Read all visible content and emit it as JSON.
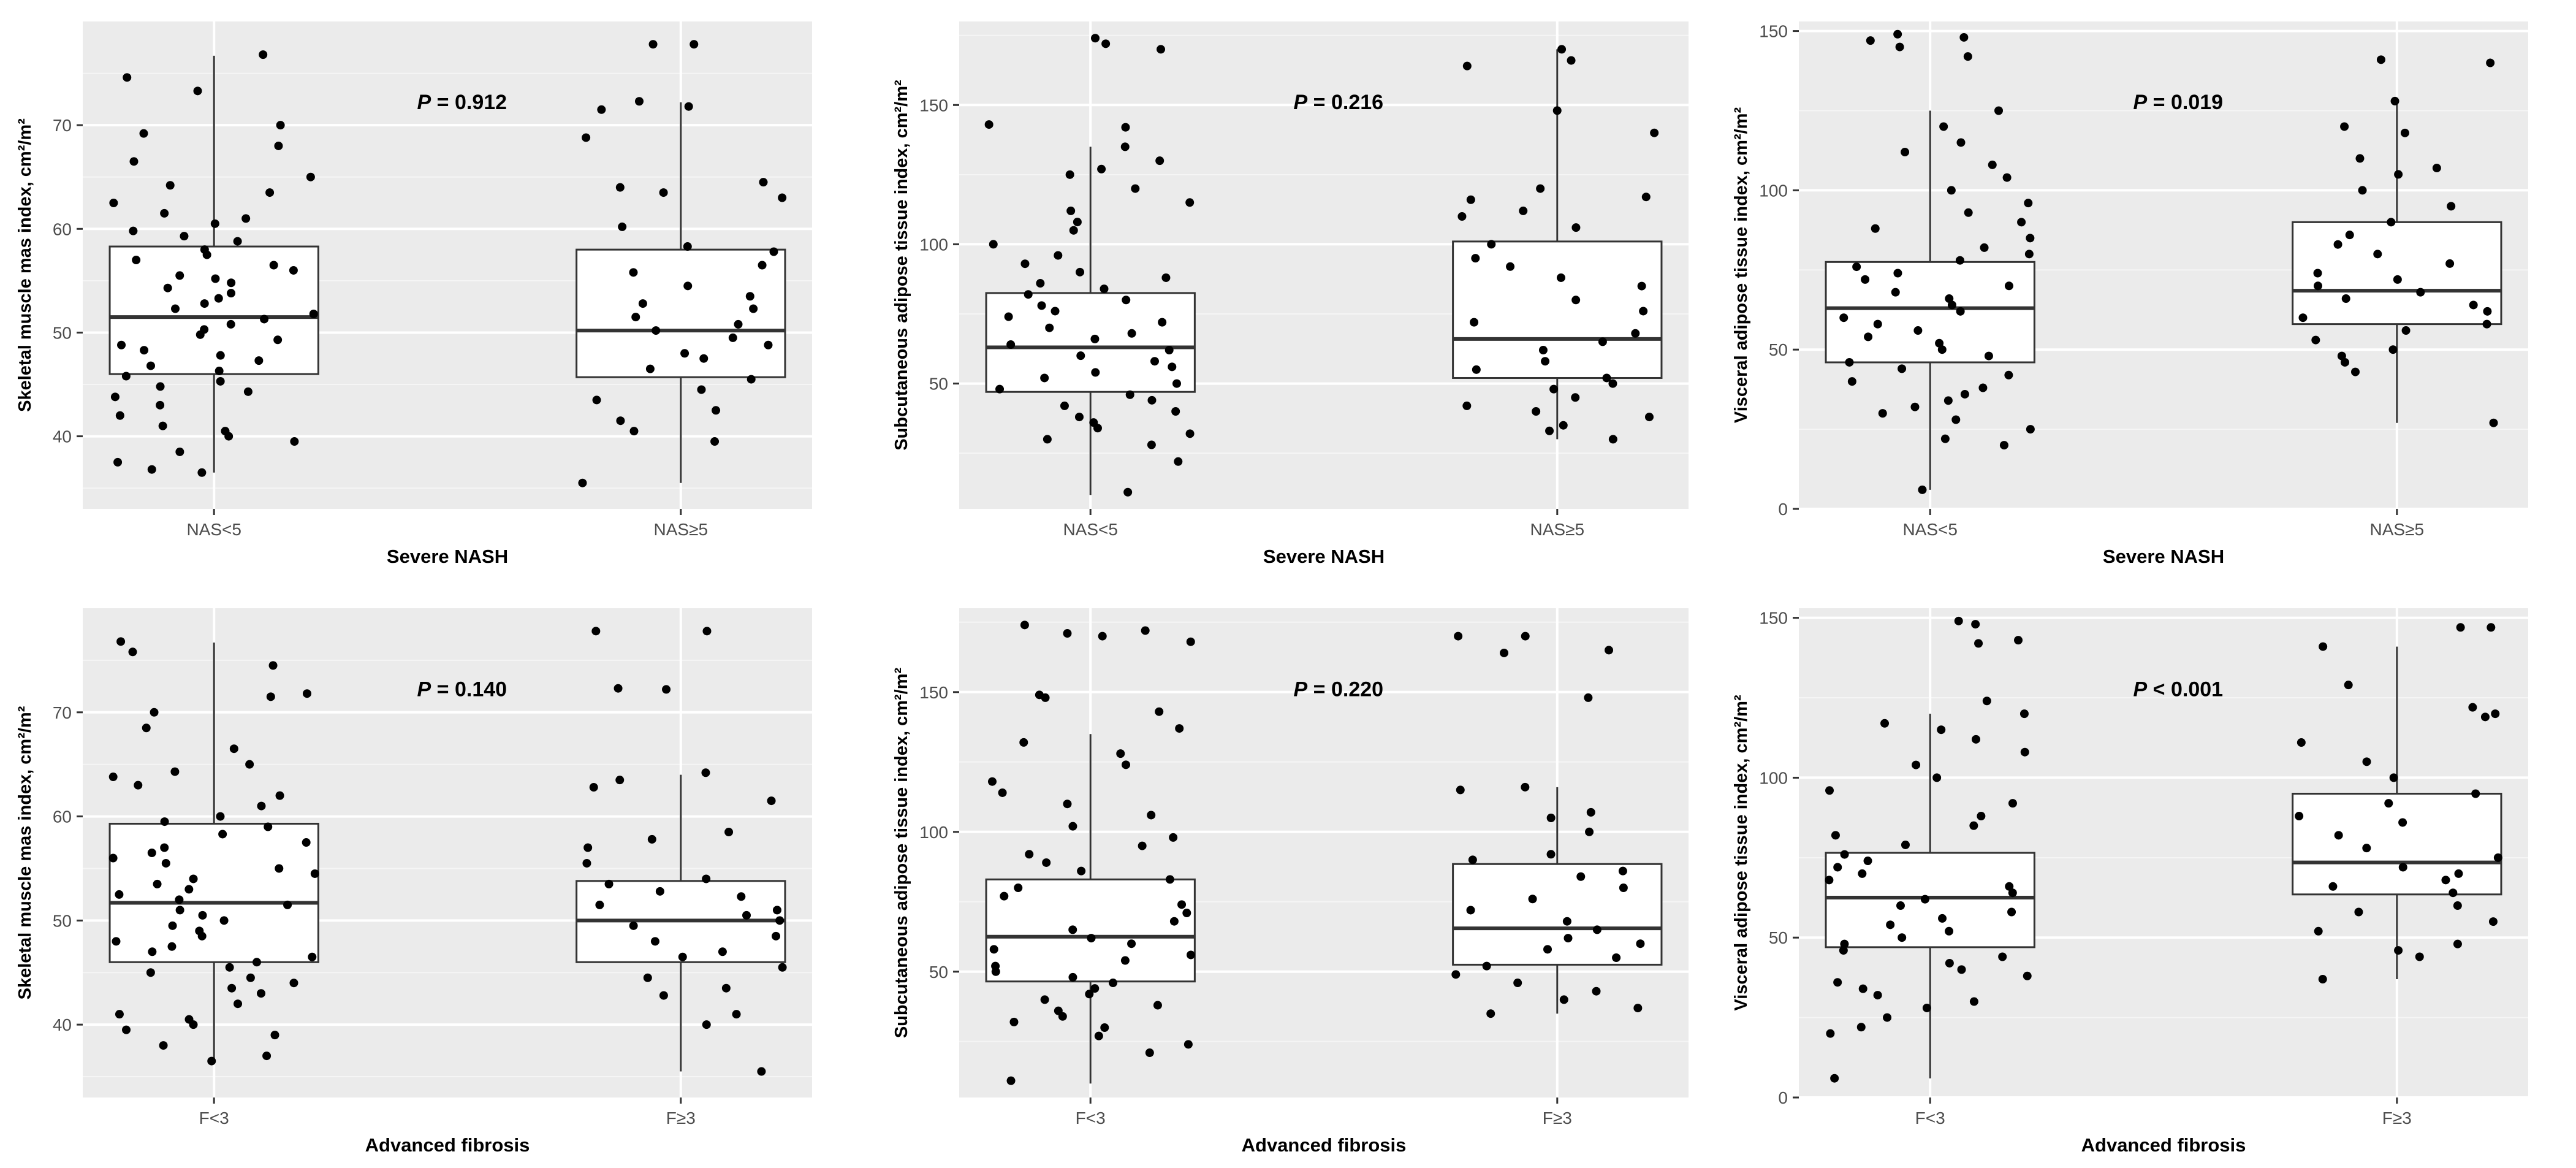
{
  "figure": {
    "panels_count": 6
  },
  "chart_data": [
    {
      "type": "box",
      "title": "",
      "xlabel": "Severe NASH",
      "ylabel": "Skeletal muscle mas index, cm²/m²",
      "categories": [
        "NAS<5",
        "NAS≥5"
      ],
      "ylim": [
        33,
        80
      ],
      "yticks": [
        40,
        50,
        60,
        70
      ],
      "annotation": {
        "label": "P",
        "text": " = 0.912"
      },
      "boxes": [
        {
          "category": "NAS<5",
          "whisker_low": 36.5,
          "q1": 46.0,
          "median": 51.5,
          "q3": 58.3,
          "whisker_high": 76.7
        },
        {
          "category": "NAS≥5",
          "whisker_low": 35.5,
          "q1": 45.7,
          "median": 50.2,
          "q3": 58.0,
          "whisker_high": 72.2
        }
      ],
      "points": [
        [
          76.8,
          74.6,
          73.3,
          70.0,
          69.2,
          68.0,
          66.5,
          65.0,
          64.2,
          63.5,
          62.5,
          61.5,
          61.0,
          60.5,
          59.8,
          59.3,
          58.8,
          58.0,
          57.5,
          57.0,
          56.5,
          56.0,
          55.5,
          55.2,
          54.8,
          54.3,
          53.8,
          53.3,
          52.8,
          52.3,
          51.8,
          51.3,
          50.8,
          50.3,
          49.8,
          49.3,
          48.8,
          48.3,
          47.8,
          47.3,
          46.8,
          46.3,
          45.8,
          45.3,
          44.8,
          44.3,
          43.8,
          43.0,
          42.0,
          41.0,
          40.5,
          40.0,
          39.5,
          38.5,
          37.5,
          36.8,
          36.5
        ],
        [
          77.8,
          77.8,
          72.3,
          71.8,
          71.5,
          68.8,
          64.5,
          64.0,
          63.5,
          63.0,
          60.2,
          58.3,
          57.8,
          56.5,
          55.8,
          54.5,
          53.5,
          52.8,
          52.3,
          51.5,
          50.8,
          50.2,
          49.5,
          48.8,
          48.0,
          47.5,
          46.5,
          45.5,
          44.5,
          43.5,
          42.5,
          41.5,
          40.5,
          39.5,
          35.5
        ]
      ]
    },
    {
      "type": "box",
      "title": "",
      "xlabel": "Severe NASH",
      "ylabel": "Subcutaneous adipose tissue index, cm²/m²",
      "categories": [
        "NAS<5",
        "NAS≥5"
      ],
      "ylim": [
        5,
        180
      ],
      "yticks": [
        50,
        100,
        150
      ],
      "annotation": {
        "label": "P",
        "text": " = 0.216"
      },
      "boxes": [
        {
          "category": "NAS<5",
          "whisker_low": 10,
          "q1": 47,
          "median": 63,
          "q3": 82.5,
          "whisker_high": 135
        },
        {
          "category": "NAS≥5",
          "whisker_low": 30,
          "q1": 52,
          "median": 66,
          "q3": 101,
          "whisker_high": 170
        }
      ],
      "points": [
        [
          174,
          172,
          170,
          143,
          142,
          135,
          130,
          127,
          125,
          120,
          115,
          112,
          108,
          105,
          100,
          96,
          93,
          90,
          88,
          86,
          84,
          82,
          80,
          78,
          76,
          74,
          72,
          70,
          68,
          66,
          64,
          62,
          60,
          58,
          56,
          54,
          52,
          50,
          48,
          46,
          44,
          42,
          40,
          38,
          36,
          34,
          32,
          30,
          28,
          22,
          11
        ],
        [
          170,
          166,
          164,
          148,
          140,
          120,
          117,
          116,
          112,
          110,
          106,
          100,
          95,
          92,
          88,
          85,
          80,
          76,
          72,
          68,
          65,
          62,
          58,
          55,
          52,
          50,
          48,
          45,
          42,
          40,
          38,
          35,
          33,
          30
        ]
      ]
    },
    {
      "type": "box",
      "title": "",
      "xlabel": "Severe NASH",
      "ylabel": "Visceral adipose tissue index, cm²/m²",
      "categories": [
        "NAS<5",
        "NAS≥5"
      ],
      "ylim": [
        0,
        153
      ],
      "yticks": [
        0,
        50,
        100,
        150
      ],
      "annotation": {
        "label": "P",
        "text": " = 0.019"
      },
      "boxes": [
        {
          "category": "NAS<5",
          "whisker_low": 6,
          "q1": 46,
          "median": 63,
          "q3": 77.5,
          "whisker_high": 125
        },
        {
          "category": "NAS≥5",
          "whisker_low": 27,
          "q1": 58,
          "median": 68.5,
          "q3": 90,
          "whisker_high": 129
        }
      ],
      "points": [
        [
          149,
          148,
          147,
          145,
          142,
          125,
          120,
          115,
          112,
          108,
          104,
          100,
          96,
          93,
          90,
          88,
          85,
          82,
          80,
          78,
          76,
          74,
          72,
          70,
          68,
          66,
          64,
          62,
          60,
          58,
          56,
          54,
          52,
          50,
          48,
          46,
          44,
          42,
          40,
          38,
          36,
          34,
          32,
          30,
          28,
          25,
          22,
          20,
          6
        ],
        [
          141,
          140,
          128,
          120,
          118,
          110,
          107,
          105,
          100,
          95,
          90,
          86,
          83,
          80,
          77,
          74,
          72,
          70,
          68,
          66,
          64,
          62,
          60,
          58,
          56,
          53,
          50,
          48,
          46,
          43,
          27
        ]
      ]
    },
    {
      "type": "box",
      "title": "",
      "xlabel": "Advanced fibrosis",
      "ylabel": "Skeletal muscle mas index, cm²/m²",
      "categories": [
        "F<3",
        "F≥3"
      ],
      "ylim": [
        33,
        80
      ],
      "yticks": [
        40,
        50,
        60,
        70
      ],
      "annotation": {
        "label": "P",
        "text": " = 0.140"
      },
      "boxes": [
        {
          "category": "F<3",
          "whisker_low": 36.5,
          "q1": 46.0,
          "median": 51.7,
          "q3": 59.3,
          "whisker_high": 76.7
        },
        {
          "category": "F≥3",
          "whisker_low": 35.5,
          "q1": 46.0,
          "median": 50.0,
          "q3": 53.8,
          "whisker_high": 64.0
        }
      ],
      "points": [
        [
          76.8,
          75.8,
          74.5,
          71.8,
          71.5,
          70.0,
          68.5,
          66.5,
          65.0,
          64.3,
          63.8,
          63.0,
          62.0,
          61.0,
          60.0,
          59.5,
          59.0,
          58.3,
          57.5,
          57.0,
          56.5,
          56.0,
          55.5,
          55.0,
          54.5,
          54.0,
          53.5,
          53.0,
          52.5,
          52.0,
          51.5,
          51.0,
          50.5,
          50.0,
          49.5,
          49.0,
          48.5,
          48.0,
          47.5,
          47.0,
          46.5,
          46.0,
          45.5,
          45.0,
          44.5,
          44.0,
          43.5,
          43.0,
          42.0,
          41.0,
          40.5,
          40.0,
          39.5,
          39.0,
          38.0,
          37.0,
          36.5
        ],
        [
          77.8,
          77.8,
          72.3,
          72.2,
          64.2,
          63.5,
          62.8,
          61.5,
          58.5,
          57.8,
          57.0,
          55.5,
          54.0,
          53.5,
          52.8,
          52.3,
          51.5,
          51.0,
          50.5,
          50.0,
          49.5,
          48.5,
          48.0,
          47.0,
          46.5,
          45.5,
          44.5,
          43.5,
          42.8,
          41.0,
          40.0,
          35.5
        ]
      ]
    },
    {
      "type": "box",
      "title": "",
      "xlabel": "Advanced fibrosis",
      "ylabel": "Subcutaneous adipose tissue index, cm²/m²",
      "categories": [
        "F<3",
        "F≥3"
      ],
      "ylim": [
        5,
        180
      ],
      "yticks": [
        50,
        100,
        150
      ],
      "annotation": {
        "label": "P",
        "text": " = 0.220"
      },
      "boxes": [
        {
          "category": "F<3",
          "whisker_low": 10,
          "q1": 46.5,
          "median": 62.5,
          "q3": 83,
          "whisker_high": 135
        },
        {
          "category": "F≥3",
          "whisker_low": 35,
          "q1": 52.5,
          "median": 65.5,
          "q3": 88.5,
          "whisker_high": 116
        }
      ],
      "points": [
        [
          174,
          172,
          171,
          170,
          168,
          149,
          148,
          143,
          137,
          132,
          128,
          124,
          118,
          114,
          110,
          106,
          102,
          98,
          95,
          92,
          89,
          86,
          83,
          80,
          77,
          74,
          71,
          68,
          65,
          62,
          60,
          58,
          56,
          54,
          52,
          50,
          48,
          46,
          44,
          42,
          40,
          38,
          36,
          34,
          32,
          30,
          27,
          24,
          21,
          11
        ],
        [
          170,
          170,
          165,
          164,
          148,
          116,
          115,
          107,
          105,
          100,
          92,
          90,
          86,
          84,
          80,
          76,
          72,
          68,
          65,
          62,
          60,
          58,
          55,
          52,
          49,
          46,
          43,
          40,
          37,
          35
        ]
      ]
    },
    {
      "type": "box",
      "title": "",
      "xlabel": "Advanced fibrosis",
      "ylabel": "Visceral adipose tissue index, cm²/m²",
      "categories": [
        "F<3",
        "F≥3"
      ],
      "ylim": [
        0,
        153
      ],
      "yticks": [
        0,
        50,
        100,
        150
      ],
      "annotation": {
        "label": "P",
        "text": " < 0.001"
      },
      "boxes": [
        {
          "category": "F<3",
          "whisker_low": 6,
          "q1": 47,
          "median": 62.5,
          "q3": 76.5,
          "whisker_high": 120
        },
        {
          "category": "F≥3",
          "whisker_low": 37,
          "q1": 63.5,
          "median": 73.5,
          "q3": 95,
          "whisker_high": 141
        }
      ],
      "points": [
        [
          149,
          148,
          143,
          142,
          124,
          120,
          117,
          115,
          112,
          108,
          104,
          100,
          96,
          92,
          88,
          85,
          82,
          79,
          76,
          74,
          72,
          70,
          68,
          66,
          64,
          62,
          60,
          58,
          56,
          54,
          52,
          50,
          48,
          46,
          44,
          42,
          40,
          38,
          36,
          34,
          32,
          30,
          28,
          25,
          22,
          20,
          6
        ],
        [
          147,
          147,
          141,
          129,
          122,
          120,
          119,
          111,
          105,
          100,
          95,
          92,
          88,
          86,
          82,
          78,
          75,
          72,
          70,
          68,
          66,
          64,
          60,
          58,
          55,
          52,
          48,
          46,
          44,
          37
        ]
      ]
    }
  ]
}
